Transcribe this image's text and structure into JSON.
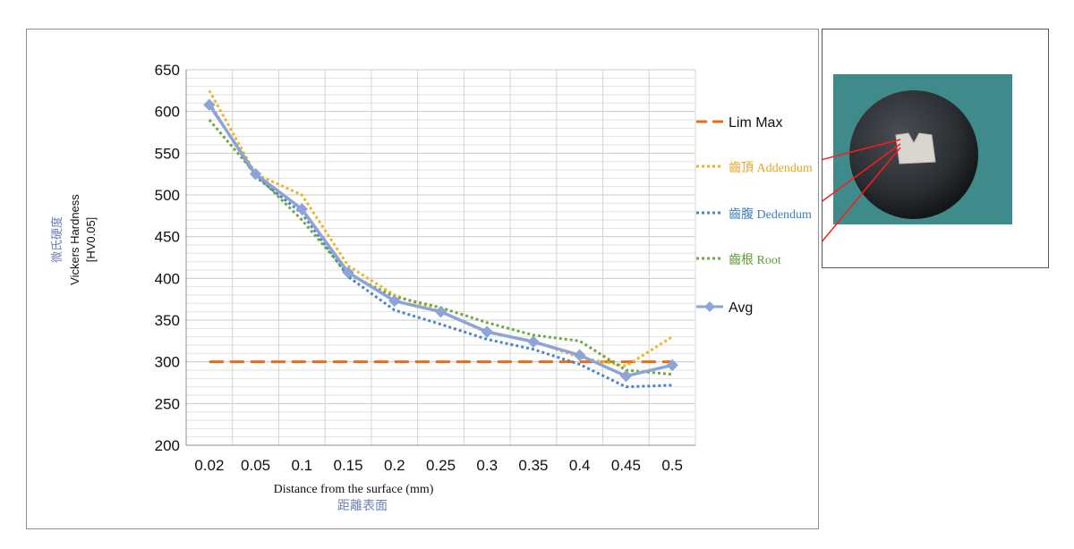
{
  "chart_data": {
    "type": "line",
    "title": "",
    "xlabel": "Distance from the surface (mm)",
    "xlabel_secondary": "距離表面",
    "ylabel_lines": [
      "微氏硬度",
      "Vickers Hardness",
      "[HV0.05]"
    ],
    "ylim": [
      200,
      650
    ],
    "ytick_step": 50,
    "grid": true,
    "legend_position": "right",
    "categories": [
      "0.02",
      "0.05",
      "0.1",
      "0.15",
      "0.2",
      "0.25",
      "0.3",
      "0.35",
      "0.4",
      "0.45",
      "0.5"
    ],
    "series": [
      {
        "name": "Lim Max",
        "style": "dashed",
        "color": "#e46c1f",
        "values": [
          300,
          300,
          300,
          300,
          300,
          300,
          300,
          300,
          300,
          300,
          300
        ]
      },
      {
        "name": "齒頂 Addendum",
        "style": "dotted",
        "color": "#f0b422",
        "values": [
          625,
          525,
          500,
          415,
          380,
          360,
          335,
          325,
          305,
          295,
          330
        ]
      },
      {
        "name": "齒腹 Dedendum",
        "style": "dotted",
        "color": "#4a86c5",
        "values": [
          610,
          522,
          478,
          402,
          362,
          345,
          327,
          315,
          297,
          270,
          272
        ]
      },
      {
        "name": "齒根 Root",
        "style": "dotted",
        "color": "#6ea843",
        "values": [
          590,
          525,
          470,
          405,
          378,
          365,
          347,
          332,
          325,
          290,
          285
        ]
      },
      {
        "name": "Avg",
        "style": "solid-marker",
        "color": "#8ea3d8",
        "values": [
          608,
          525,
          483,
          407,
          373,
          360,
          336,
          324,
          308,
          283,
          296
        ]
      }
    ]
  },
  "colors": {
    "legend_addendum_text": "#e8a623",
    "legend_dedendum_text": "#3d7fc1",
    "legend_root_text": "#5e9d35",
    "ylabel_secondary_text": "#6a7fb5",
    "photo_background": "#3f8a8a",
    "coin": "#2a2d31",
    "pointer_lines": "#ff1a1a"
  }
}
